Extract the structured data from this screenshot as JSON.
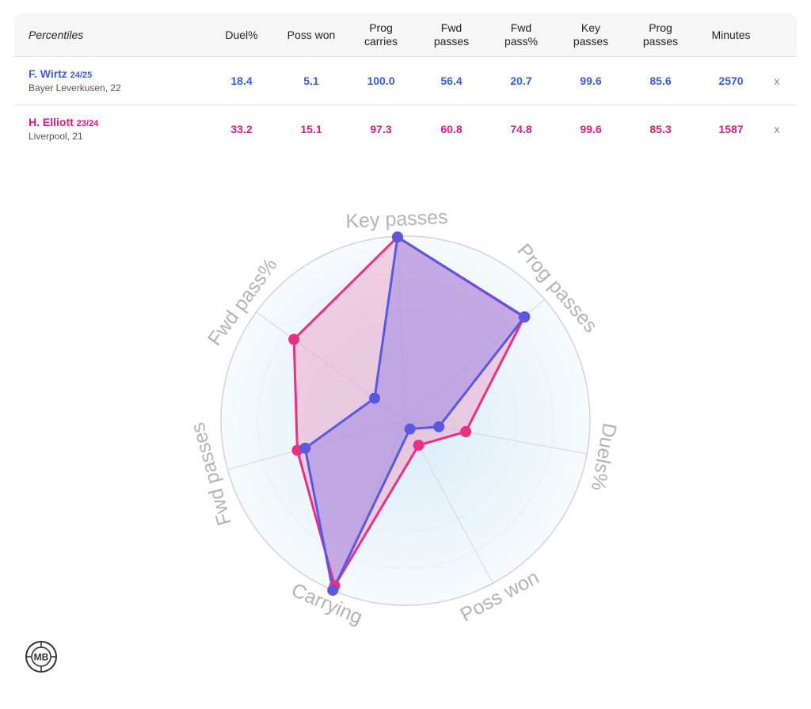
{
  "table": {
    "header_label": "Percentiles",
    "columns": [
      {
        "label": "Duel%"
      },
      {
        "label": "Poss won"
      },
      {
        "label": "Prog\ncarries"
      },
      {
        "label": "Fwd\npasses"
      },
      {
        "label": "Fwd\npass%"
      },
      {
        "label": "Key\npasses"
      },
      {
        "label": "Prog\npasses"
      },
      {
        "label": "Minutes"
      }
    ],
    "rows": [
      {
        "name": "F. Wirtz",
        "season": "24/25",
        "club": "Bayer Leverkusen, 22",
        "color": "#3b5bdb",
        "values": [
          "18.4",
          "5.1",
          "100.0",
          "56.4",
          "20.7",
          "99.6",
          "85.6",
          "2570"
        ],
        "remove_label": "x"
      },
      {
        "name": "H. Elliott",
        "season": "23/24",
        "club": "Liverpool, 21",
        "color": "#e8177f",
        "values": [
          "33.2",
          "15.1",
          "97.3",
          "60.8",
          "74.8",
          "99.6",
          "85.3",
          "1587"
        ],
        "remove_label": "x"
      }
    ]
  },
  "chart_data": {
    "type": "radar",
    "axes": [
      "Key passes",
      "Prog passes",
      "Duels%",
      "Poss won",
      "Carrying",
      "Fwd passes",
      "Fwd pass%"
    ],
    "range": [
      0,
      100
    ],
    "grid": true,
    "series": [
      {
        "name": "F. Wirtz 24/25",
        "color": "#5b58e0",
        "fill": "#8f7fe8",
        "values": [
          99.6,
          85.6,
          18.4,
          5.1,
          100.0,
          56.4,
          20.7
        ]
      },
      {
        "name": "H. Elliott 23/24",
        "color": "#ea2f86",
        "fill": "#f098c2",
        "values": [
          99.6,
          85.3,
          33.2,
          15.1,
          97.3,
          60.8,
          74.8
        ]
      }
    ]
  },
  "logo": {
    "text": "MB",
    "icon": "mb-logo-icon"
  }
}
